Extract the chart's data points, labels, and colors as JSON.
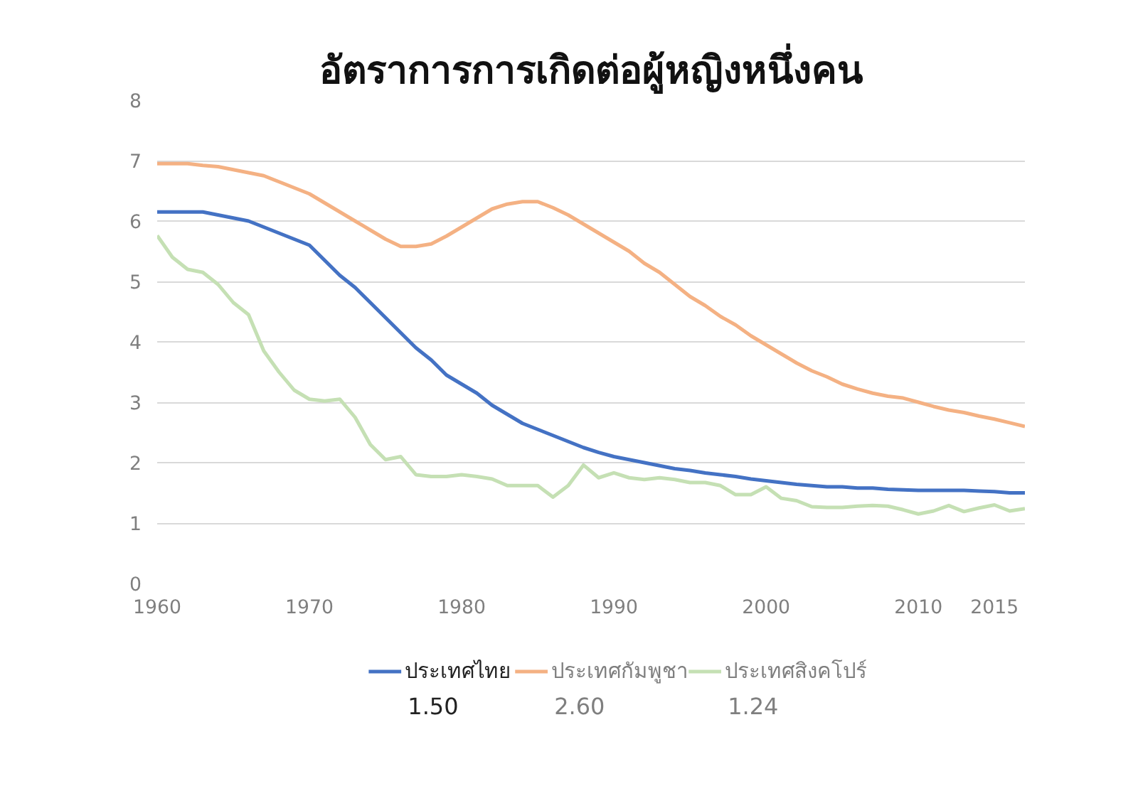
{
  "chart_data": {
    "type": "line",
    "title": "อัตราการการเกิดต่อผู้หญิงหนึ่งคน",
    "x": [
      1960,
      1961,
      1962,
      1963,
      1964,
      1965,
      1966,
      1967,
      1968,
      1969,
      1970,
      1971,
      1972,
      1973,
      1974,
      1975,
      1976,
      1977,
      1978,
      1979,
      1980,
      1981,
      1982,
      1983,
      1984,
      1985,
      1986,
      1987,
      1988,
      1989,
      1990,
      1991,
      1992,
      1993,
      1994,
      1995,
      1996,
      1997,
      1998,
      1999,
      2000,
      2001,
      2002,
      2003,
      2004,
      2005,
      2006,
      2007,
      2008,
      2009,
      2010,
      2011,
      2012,
      2013,
      2014,
      2015,
      2016,
      2017
    ],
    "series": [
      {
        "name": "ประเทศไทย",
        "color": "#4472c4",
        "values": [
          6.15,
          6.15,
          6.15,
          6.15,
          6.1,
          6.05,
          6.0,
          5.9,
          5.8,
          5.7,
          5.6,
          5.35,
          5.1,
          4.9,
          4.65,
          4.4,
          4.15,
          3.9,
          3.7,
          3.45,
          3.3,
          3.15,
          2.95,
          2.8,
          2.65,
          2.55,
          2.45,
          2.35,
          2.25,
          2.17,
          2.1,
          2.05,
          2.0,
          1.95,
          1.9,
          1.87,
          1.83,
          1.8,
          1.77,
          1.73,
          1.7,
          1.67,
          1.64,
          1.62,
          1.6,
          1.6,
          1.58,
          1.58,
          1.56,
          1.55,
          1.54,
          1.54,
          1.54,
          1.54,
          1.53,
          1.52,
          1.5,
          1.5
        ]
      },
      {
        "name": "ประเทศกัมพูชา",
        "color": "#f4b183",
        "values": [
          6.95,
          6.95,
          6.95,
          6.92,
          6.9,
          6.85,
          6.8,
          6.75,
          6.65,
          6.55,
          6.45,
          6.3,
          6.15,
          6.0,
          5.85,
          5.7,
          5.58,
          5.58,
          5.62,
          5.75,
          5.9,
          6.05,
          6.2,
          6.28,
          6.32,
          6.32,
          6.22,
          6.1,
          5.95,
          5.8,
          5.65,
          5.5,
          5.3,
          5.15,
          4.95,
          4.75,
          4.6,
          4.42,
          4.28,
          4.1,
          3.95,
          3.8,
          3.65,
          3.52,
          3.42,
          3.3,
          3.22,
          3.15,
          3.1,
          3.07,
          3.0,
          2.93,
          2.87,
          2.83,
          2.77,
          2.72,
          2.66,
          2.6
        ]
      },
      {
        "name": "ประเทศสิงคโปร์",
        "color": "#c5e0b4",
        "values": [
          5.76,
          5.4,
          5.2,
          5.15,
          4.95,
          4.65,
          4.45,
          3.85,
          3.5,
          3.2,
          3.05,
          3.02,
          3.05,
          2.75,
          2.3,
          2.05,
          2.1,
          1.8,
          1.77,
          1.77,
          1.8,
          1.77,
          1.73,
          1.62,
          1.62,
          1.62,
          1.43,
          1.62,
          1.96,
          1.75,
          1.83,
          1.75,
          1.72,
          1.75,
          1.72,
          1.67,
          1.67,
          1.62,
          1.47,
          1.47,
          1.6,
          1.41,
          1.37,
          1.27,
          1.26,
          1.26,
          1.28,
          1.29,
          1.28,
          1.22,
          1.15,
          1.2,
          1.29,
          1.19,
          1.25,
          1.3,
          1.2,
          1.24
        ]
      }
    ],
    "annotations": [
      "1.50",
      "2.60",
      "1.24"
    ],
    "xlim": [
      1960,
      2017
    ],
    "xticks": [
      1960,
      1970,
      1980,
      1990,
      2000,
      2010,
      2015
    ],
    "ylim": [
      0,
      8
    ],
    "yticks": [
      0,
      1,
      2,
      3,
      4,
      5,
      6,
      7,
      8
    ],
    "grid": "y",
    "legend": "bottom",
    "line_style": "solid"
  }
}
